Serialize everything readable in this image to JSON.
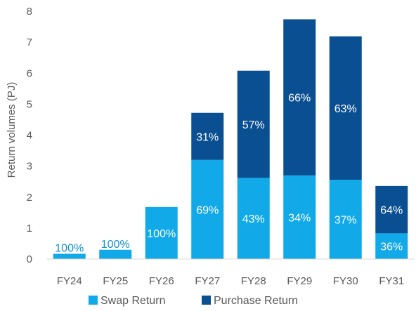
{
  "chart_data": {
    "type": "bar",
    "stacked": true,
    "categories": [
      "FY24",
      "FY25",
      "FY26",
      "FY27",
      "FY28",
      "FY29",
      "FY30",
      "FY31"
    ],
    "series": [
      {
        "name": "Swap Return",
        "color": "#12a9e8",
        "values": [
          0.17,
          0.3,
          1.68,
          3.2,
          2.62,
          2.7,
          2.56,
          0.83
        ],
        "labels": [
          "100%",
          "100%",
          "100%",
          "69%",
          "43%",
          "34%",
          "37%",
          "36%"
        ]
      },
      {
        "name": "Purchase Return",
        "color": "#0a4f92",
        "values": [
          0,
          0,
          0,
          1.52,
          3.46,
          5.04,
          4.63,
          1.53
        ],
        "labels": [
          "",
          "",
          "",
          "31%",
          "57%",
          "66%",
          "63%",
          "64%"
        ]
      }
    ],
    "title": "",
    "xlabel": "",
    "ylabel": "Return volumes (PJ)",
    "ylim": [
      0,
      8
    ],
    "yticks": [
      0,
      1,
      2,
      3,
      4,
      5,
      6,
      7,
      8
    ],
    "grid": false,
    "legend": "bottom"
  }
}
